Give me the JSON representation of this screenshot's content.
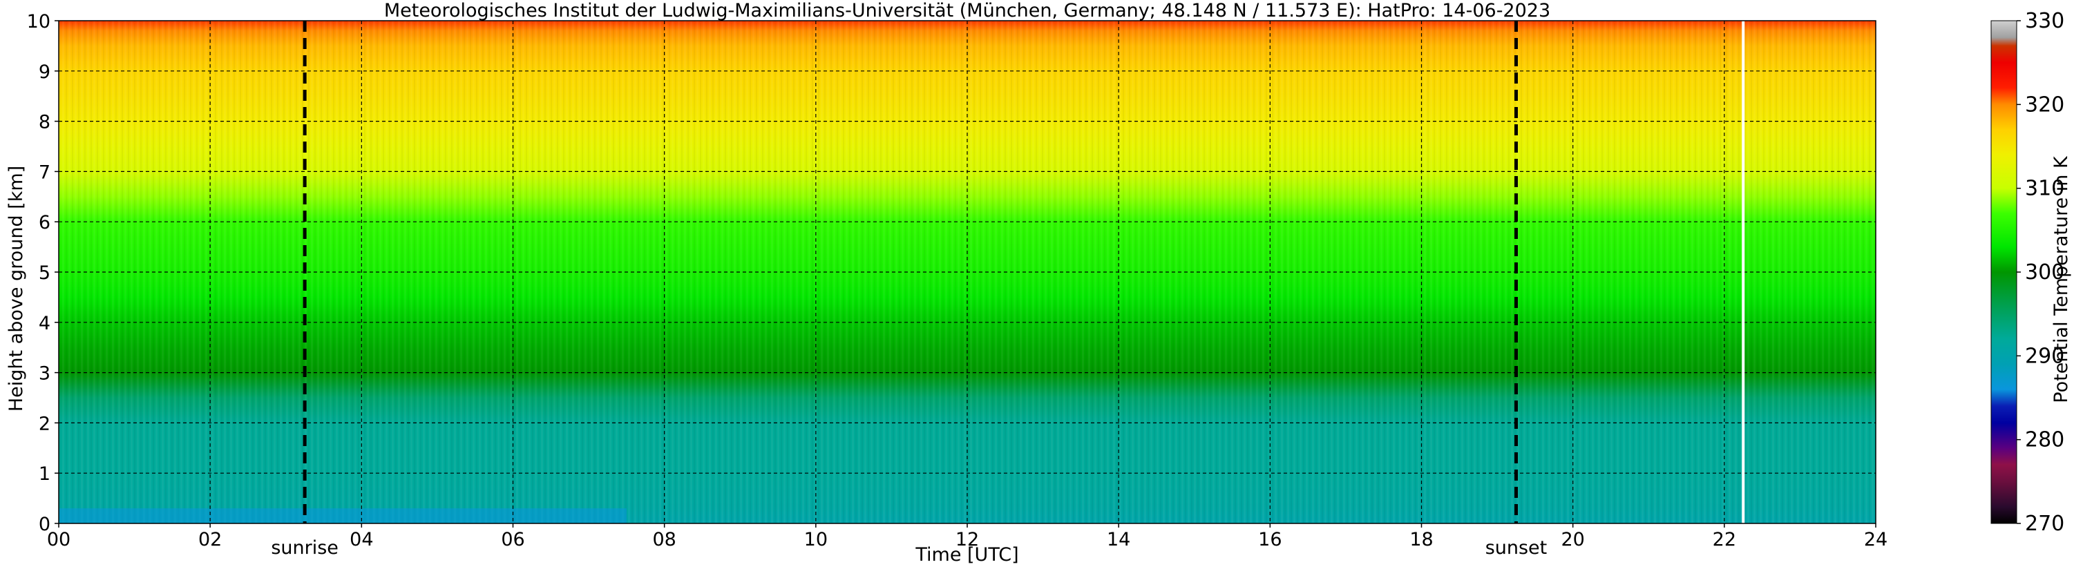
{
  "chart_data": {
    "type": "heatmap",
    "title": "Meteorologisches Institut der Ludwig-Maximilians-Universität (München, Germany; 48.148 N / 11.573 E):    HatPro: 14-06-2023",
    "xlabel": "Time [UTC]",
    "ylabel": "Height above ground [km]",
    "xlim": [
      0,
      24
    ],
    "ylim": [
      0,
      10
    ],
    "x_ticks": [
      "00",
      "02",
      "04",
      "06",
      "08",
      "10",
      "12",
      "14",
      "16",
      "18",
      "20",
      "22",
      "24"
    ],
    "x_tick_values": [
      0,
      2,
      4,
      6,
      8,
      10,
      12,
      14,
      16,
      18,
      20,
      22,
      24
    ],
    "y_ticks": [
      "0",
      "1",
      "2",
      "3",
      "4",
      "5",
      "6",
      "7",
      "8",
      "9",
      "10"
    ],
    "y_tick_values": [
      0,
      1,
      2,
      3,
      4,
      5,
      6,
      7,
      8,
      9,
      10
    ],
    "grid": true,
    "colorbar": {
      "label": "Potential Temperature in K",
      "range": [
        270,
        330
      ],
      "ticks": [
        "270",
        "280",
        "290",
        "300",
        "310",
        "320",
        "330"
      ],
      "tick_values": [
        270,
        280,
        290,
        300,
        310,
        320,
        330
      ],
      "colors": [
        {
          "value": 270,
          "color": "#000000"
        },
        {
          "value": 272,
          "color": "#2a0a2e"
        },
        {
          "value": 275,
          "color": "#6b0f3e"
        },
        {
          "value": 277,
          "color": "#8f1048"
        },
        {
          "value": 279,
          "color": "#5a0080"
        },
        {
          "value": 282,
          "color": "#0000a0"
        },
        {
          "value": 284,
          "color": "#0a1eb4"
        },
        {
          "value": 286,
          "color": "#0a96dc"
        },
        {
          "value": 289,
          "color": "#00a0b4"
        },
        {
          "value": 292,
          "color": "#00aa9a"
        },
        {
          "value": 296,
          "color": "#00a050"
        },
        {
          "value": 300,
          "color": "#009600"
        },
        {
          "value": 303,
          "color": "#00e600"
        },
        {
          "value": 307,
          "color": "#3cff00"
        },
        {
          "value": 310,
          "color": "#c8ff00"
        },
        {
          "value": 314,
          "color": "#f0f000"
        },
        {
          "value": 317,
          "color": "#ffd000"
        },
        {
          "value": 320,
          "color": "#ff8c00"
        },
        {
          "value": 322,
          "color": "#ff1e00"
        },
        {
          "value": 325,
          "color": "#ee0000"
        },
        {
          "value": 327,
          "color": "#cc3300"
        },
        {
          "value": 328,
          "color": "#a0a0a0"
        },
        {
          "value": 330,
          "color": "#d0d0d0"
        }
      ]
    },
    "theta_profile": [
      {
        "height": 0.0,
        "theta": 290.2
      },
      {
        "height": 0.3,
        "theta": 291.2
      },
      {
        "height": 1.0,
        "theta": 292.0
      },
      {
        "height": 2.0,
        "theta": 292.2
      },
      {
        "height": 2.5,
        "theta": 294.5
      },
      {
        "height": 3.0,
        "theta": 300.0
      },
      {
        "height": 3.5,
        "theta": 300.8
      },
      {
        "height": 4.0,
        "theta": 301.8
      },
      {
        "height": 4.5,
        "theta": 303.2
      },
      {
        "height": 5.0,
        "theta": 304.5
      },
      {
        "height": 5.5,
        "theta": 305.3
      },
      {
        "height": 6.0,
        "theta": 306.2
      },
      {
        "height": 6.5,
        "theta": 308.8
      },
      {
        "height": 7.0,
        "theta": 311.5
      },
      {
        "height": 7.5,
        "theta": 313.0
      },
      {
        "height": 8.0,
        "theta": 314.5
      },
      {
        "height": 8.5,
        "theta": 315.6
      },
      {
        "height": 9.0,
        "theta": 316.5
      },
      {
        "height": 9.5,
        "theta": 318.0
      },
      {
        "height": 9.8,
        "theta": 320.0
      },
      {
        "height": 10.0,
        "theta": 321.5
      }
    ],
    "annotations": [
      {
        "label": "sunrise",
        "x": 3.25
      },
      {
        "label": "sunset",
        "x": 19.25
      }
    ],
    "missing_data_time": 22.25
  }
}
